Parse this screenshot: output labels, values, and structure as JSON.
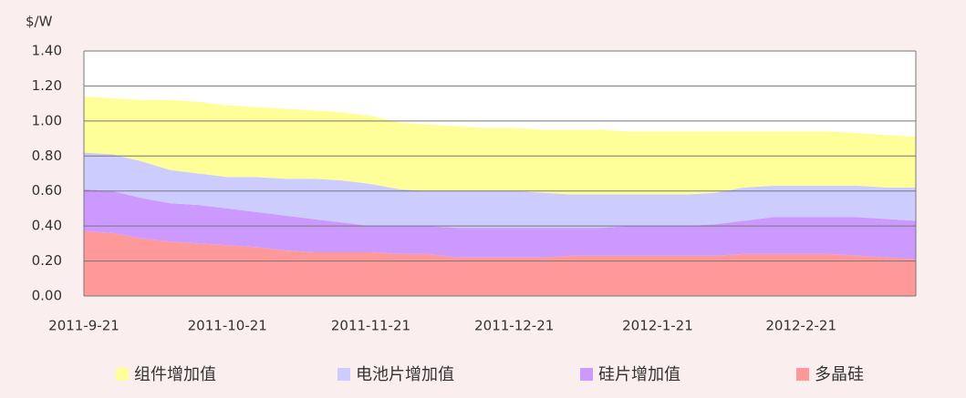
{
  "chart_data": {
    "type": "stacked-area",
    "y_label": "$/W",
    "categories": [
      "2011-9-21",
      null,
      null,
      null,
      null,
      "2011-10-21",
      null,
      null,
      null,
      null,
      "2011-11-21",
      null,
      null,
      null,
      null,
      "2011-12-21",
      null,
      null,
      null,
      null,
      "2012-1-21",
      null,
      null,
      null,
      null,
      "2012-2-21",
      null,
      null,
      null,
      null
    ],
    "series": [
      {
        "name": "组件增加值",
        "color": "#ffff99",
        "values": [
          0.32,
          0.32,
          0.35,
          0.4,
          0.41,
          0.41,
          0.4,
          0.4,
          0.39,
          0.39,
          0.39,
          0.38,
          0.38,
          0.37,
          0.36,
          0.36,
          0.36,
          0.37,
          0.37,
          0.36,
          0.36,
          0.36,
          0.35,
          0.32,
          0.31,
          0.31,
          0.31,
          0.3,
          0.3,
          0.29
        ]
      },
      {
        "name": "电池片增加值",
        "color": "#ccccff",
        "values": [
          0.21,
          0.21,
          0.21,
          0.19,
          0.18,
          0.18,
          0.2,
          0.21,
          0.23,
          0.24,
          0.24,
          0.21,
          0.2,
          0.21,
          0.21,
          0.21,
          0.2,
          0.19,
          0.19,
          0.18,
          0.18,
          0.18,
          0.18,
          0.19,
          0.18,
          0.18,
          0.18,
          0.18,
          0.18,
          0.19
        ]
      },
      {
        "name": "硅片增加值",
        "color": "#cc99ff",
        "values": [
          0.24,
          0.24,
          0.23,
          0.22,
          0.22,
          0.21,
          0.2,
          0.2,
          0.19,
          0.17,
          0.15,
          0.16,
          0.16,
          0.17,
          0.17,
          0.17,
          0.17,
          0.16,
          0.16,
          0.17,
          0.17,
          0.17,
          0.18,
          0.19,
          0.21,
          0.21,
          0.21,
          0.22,
          0.22,
          0.22
        ]
      },
      {
        "name": "多晶硅",
        "color": "#ff9999",
        "values": [
          0.37,
          0.36,
          0.33,
          0.31,
          0.3,
          0.29,
          0.28,
          0.26,
          0.25,
          0.25,
          0.25,
          0.24,
          0.24,
          0.22,
          0.22,
          0.22,
          0.22,
          0.23,
          0.23,
          0.23,
          0.23,
          0.23,
          0.23,
          0.24,
          0.24,
          0.24,
          0.24,
          0.23,
          0.22,
          0.21
        ]
      }
    ],
    "ylim": [
      0,
      1.4
    ],
    "yticks": [
      {
        "value": 0,
        "label": "0.00"
      },
      {
        "value": 0.2,
        "label": "0.20"
      },
      {
        "value": 0.4,
        "label": "0.40"
      },
      {
        "value": 0.6,
        "label": "0.60"
      },
      {
        "value": 0.8,
        "label": "0.80"
      },
      {
        "value": 1,
        "label": "1.00"
      },
      {
        "value": 1.2,
        "label": "1.20"
      },
      {
        "value": 1.4,
        "label": "1.40"
      }
    ],
    "grid": true,
    "legend": "bottom"
  }
}
